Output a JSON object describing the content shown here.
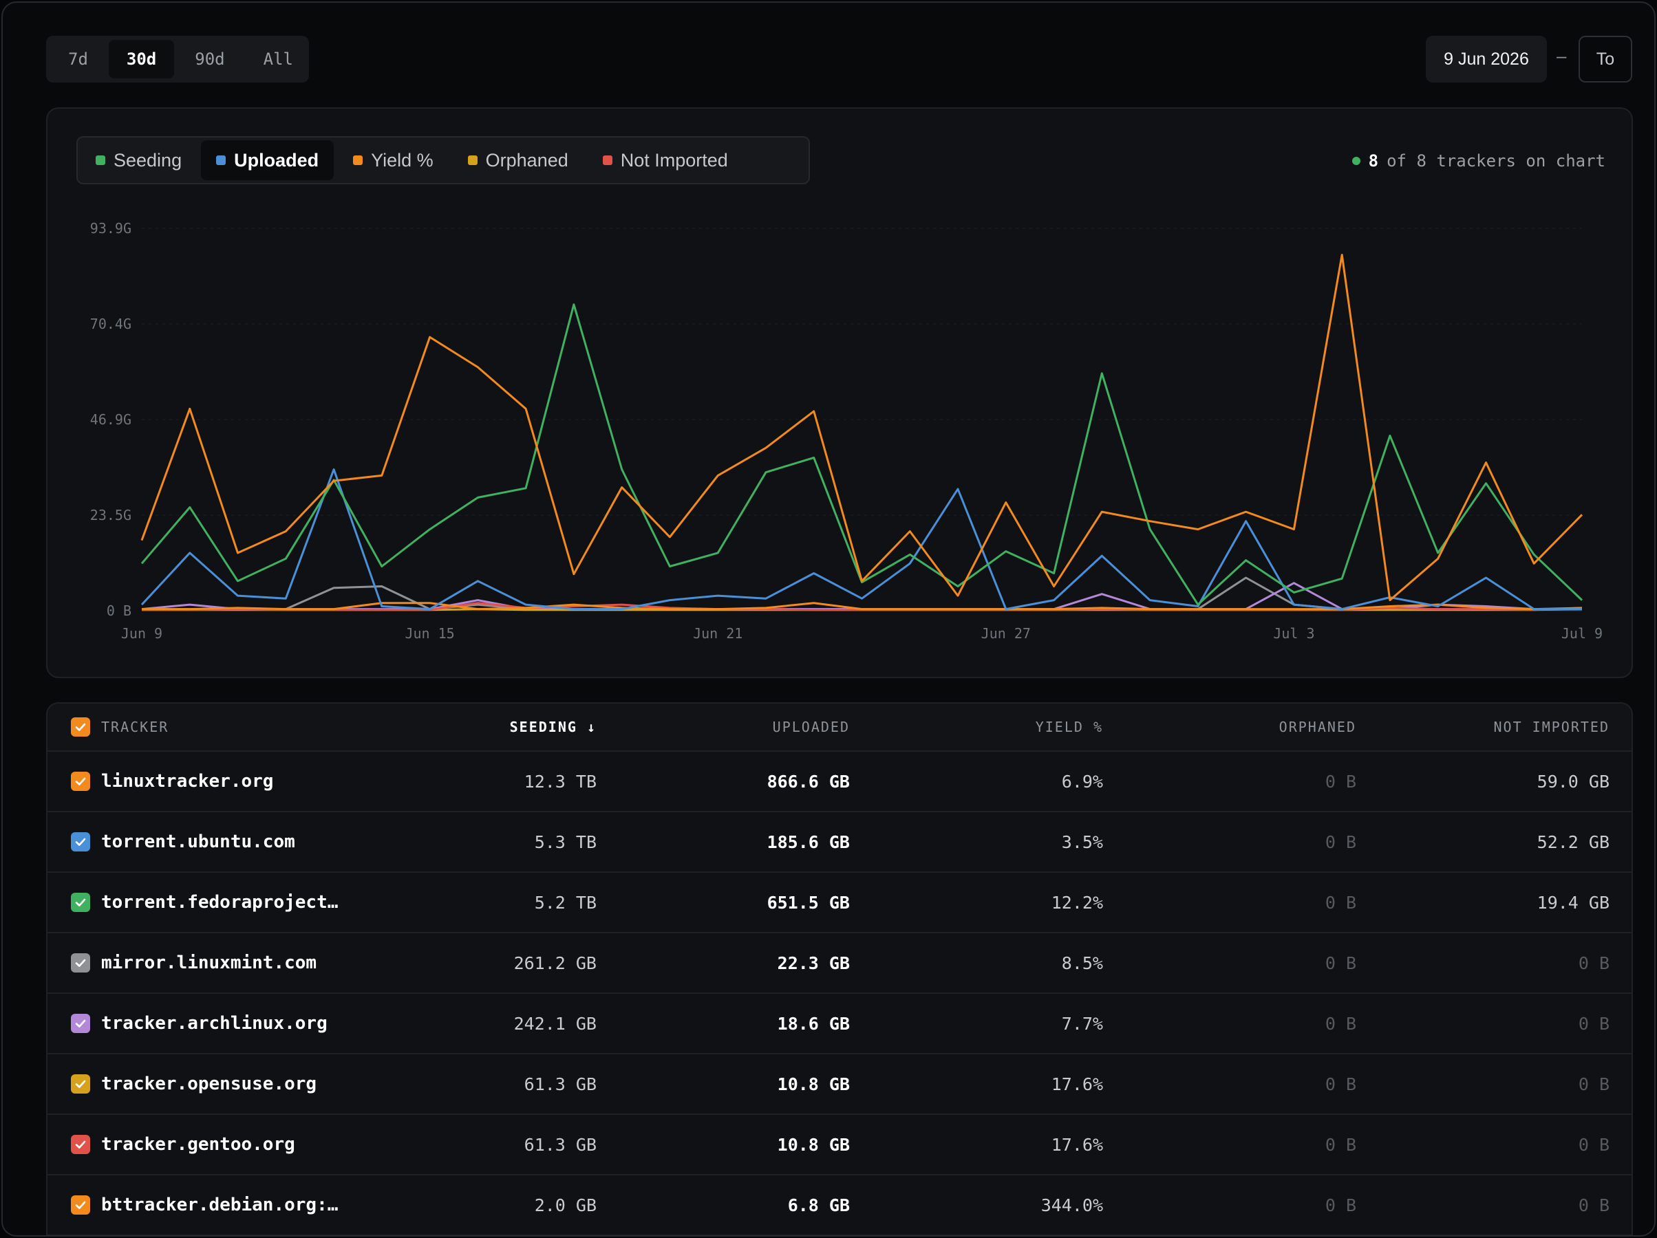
{
  "ranges": {
    "items": [
      {
        "label": "7d",
        "active": false
      },
      {
        "label": "30d",
        "active": true
      },
      {
        "label": "90d",
        "active": false
      },
      {
        "label": "All",
        "active": false
      }
    ]
  },
  "date_range": {
    "from": "9 Jun 2026",
    "separator": "–",
    "to": "To"
  },
  "legend": {
    "items": [
      {
        "label": "Seeding",
        "color": "#3fb160",
        "active": false
      },
      {
        "label": "Uploaded",
        "color": "#4a90d9",
        "active": true
      },
      {
        "label": "Yield %",
        "color": "#f28a1e",
        "active": false
      },
      {
        "label": "Orphaned",
        "color": "#d6a21e",
        "active": false
      },
      {
        "label": "Not Imported",
        "color": "#e0524a",
        "active": false
      }
    ]
  },
  "tracker_count": {
    "shown": "8",
    "rest": "of 8 trackers on chart"
  },
  "chart_data": {
    "type": "line",
    "y_ticks": [
      "0 B",
      "23.5G",
      "46.9G",
      "70.4G",
      "93.9G"
    ],
    "ylim": [
      0,
      93.9
    ],
    "x_tick_labels": [
      "Jun 9",
      "Jun 15",
      "Jun 21",
      "Jun 27",
      "Jul 3",
      "Jul 9"
    ],
    "x_tick_indices": [
      0,
      6,
      12,
      18,
      24,
      30
    ],
    "grid": true,
    "series": [
      {
        "color": "#3fb160",
        "values": [
          11.6,
          25.4,
          7.3,
          12.8,
          32.1,
          10.9,
          20.0,
          27.8,
          30.1,
          75.2,
          34.7,
          10.9,
          14.2,
          34.0,
          37.6,
          7.0,
          13.8,
          6.0,
          14.6,
          9.2,
          58.3,
          20.0,
          1.5,
          12.4,
          4.5,
          7.9,
          43.0,
          14.2,
          31.3,
          13.8,
          2.6
        ]
      },
      {
        "color": "#4a90d9",
        "values": [
          1.5,
          14.2,
          3.7,
          3.0,
          34.7,
          1.1,
          0.4,
          7.3,
          1.5,
          0.4,
          0.4,
          2.6,
          3.7,
          3.0,
          9.2,
          3.0,
          11.6,
          29.9,
          0.4,
          2.6,
          13.5,
          2.6,
          1.1,
          22.0,
          1.5,
          0.4,
          3.3,
          1.1,
          8.1,
          0.4,
          0.4
        ]
      },
      {
        "color": "#f28a1e",
        "values": [
          17.3,
          49.6,
          14.2,
          19.5,
          31.9,
          33.2,
          67.2,
          59.8,
          49.6,
          9.0,
          30.3,
          18.1,
          33.2,
          40.0,
          49.0,
          7.3,
          19.5,
          3.7,
          26.6,
          6.0,
          24.3,
          22.0,
          20.0,
          24.3,
          20.0,
          87.4,
          2.6,
          12.8,
          36.4,
          11.6,
          23.6
        ]
      },
      {
        "color": "#8e9297",
        "values": [
          0.4,
          0.4,
          0.4,
          0.4,
          5.6,
          6.0,
          0.4,
          1.5,
          0.4,
          0.4,
          0.4,
          0.4,
          0.4,
          0.4,
          0.4,
          0.4,
          0.4,
          0.4,
          0.4,
          0.4,
          0.4,
          0.4,
          0.4,
          8.1,
          1.5,
          0.4,
          0.4,
          0.4,
          0.4,
          0.4,
          0.4
        ]
      },
      {
        "color": "#b388d9",
        "values": [
          0.4,
          1.5,
          0.4,
          0.4,
          0.4,
          0.4,
          0.4,
          2.6,
          0.4,
          0.4,
          0.4,
          0.4,
          0.4,
          0.4,
          0.4,
          0.4,
          0.4,
          0.4,
          0.4,
          0.4,
          4.1,
          0.4,
          0.4,
          0.4,
          6.8,
          0.4,
          0.4,
          1.5,
          1.1,
          0.4,
          0.4
        ]
      },
      {
        "color": "#d6a21e",
        "values": [
          0.2,
          0.2,
          0.2,
          0.2,
          0.2,
          0.2,
          0.2,
          0.4,
          0.2,
          0.2,
          0.2,
          0.2,
          0.2,
          0.2,
          0.2,
          0.2,
          0.2,
          0.2,
          0.2,
          0.2,
          0.2,
          0.2,
          0.2,
          0.2,
          0.2,
          0.2,
          0.2,
          0.2,
          0.2,
          0.2,
          0.4
        ]
      },
      {
        "color": "#e0524a",
        "values": [
          0.2,
          0.2,
          0.4,
          0.2,
          0.2,
          0.2,
          0.2,
          1.9,
          0.7,
          1.1,
          1.5,
          0.7,
          0.4,
          0.4,
          0.2,
          0.2,
          0.2,
          0.2,
          0.2,
          0.2,
          0.4,
          0.2,
          0.2,
          0.2,
          0.2,
          0.2,
          0.7,
          0.4,
          0.4,
          0.2,
          0.7
        ]
      },
      {
        "color": "#f28a1e",
        "values": [
          0.4,
          0.4,
          0.7,
          0.4,
          0.4,
          1.9,
          1.9,
          0.4,
          0.7,
          1.5,
          0.7,
          0.4,
          0.4,
          0.7,
          1.9,
          0.4,
          0.4,
          0.4,
          0.4,
          0.4,
          0.7,
          0.4,
          0.4,
          0.4,
          0.4,
          0.4,
          1.1,
          1.5,
          0.7,
          0.4,
          0.7
        ]
      }
    ]
  },
  "table": {
    "headers": {
      "tracker": "TRACKER",
      "seeding": "SEEDING",
      "uploaded": "UPLOADED",
      "yield": "YIELD %",
      "orphaned": "ORPHANED",
      "not_imported": "NOT IMPORTED"
    },
    "header_check_color": "#f28a1e",
    "rows": [
      {
        "name": "linuxtracker.org",
        "color": "#f28a1e",
        "seeding": "12.3 TB",
        "uploaded": "866.6 GB",
        "yield": "6.9%",
        "orphaned": "0 B",
        "not_imported": "59.0 GB"
      },
      {
        "name": "torrent.ubuntu.com",
        "color": "#4a90d9",
        "seeding": "5.3 TB",
        "uploaded": "185.6 GB",
        "yield": "3.5%",
        "orphaned": "0 B",
        "not_imported": "52.2 GB"
      },
      {
        "name": "torrent.fedoraproject…",
        "color": "#3fb160",
        "seeding": "5.2 TB",
        "uploaded": "651.5 GB",
        "yield": "12.2%",
        "orphaned": "0 B",
        "not_imported": "19.4 GB"
      },
      {
        "name": "mirror.linuxmint.com",
        "color": "#8e9297",
        "seeding": "261.2 GB",
        "uploaded": "22.3 GB",
        "yield": "8.5%",
        "orphaned": "0 B",
        "not_imported": "0 B"
      },
      {
        "name": "tracker.archlinux.org",
        "color": "#b388d9",
        "seeding": "242.1 GB",
        "uploaded": "18.6 GB",
        "yield": "7.7%",
        "orphaned": "0 B",
        "not_imported": "0 B"
      },
      {
        "name": "tracker.opensuse.org",
        "color": "#d6a21e",
        "seeding": "61.3 GB",
        "uploaded": "10.8 GB",
        "yield": "17.6%",
        "orphaned": "0 B",
        "not_imported": "0 B"
      },
      {
        "name": "tracker.gentoo.org",
        "color": "#e0524a",
        "seeding": "61.3 GB",
        "uploaded": "10.8 GB",
        "yield": "17.6%",
        "orphaned": "0 B",
        "not_imported": "0 B"
      },
      {
        "name": "bttracker.debian.org:…",
        "color": "#f28a1e",
        "seeding": "2.0 GB",
        "uploaded": "6.8 GB",
        "yield": "344.0%",
        "orphaned": "0 B",
        "not_imported": "0 B"
      }
    ]
  }
}
